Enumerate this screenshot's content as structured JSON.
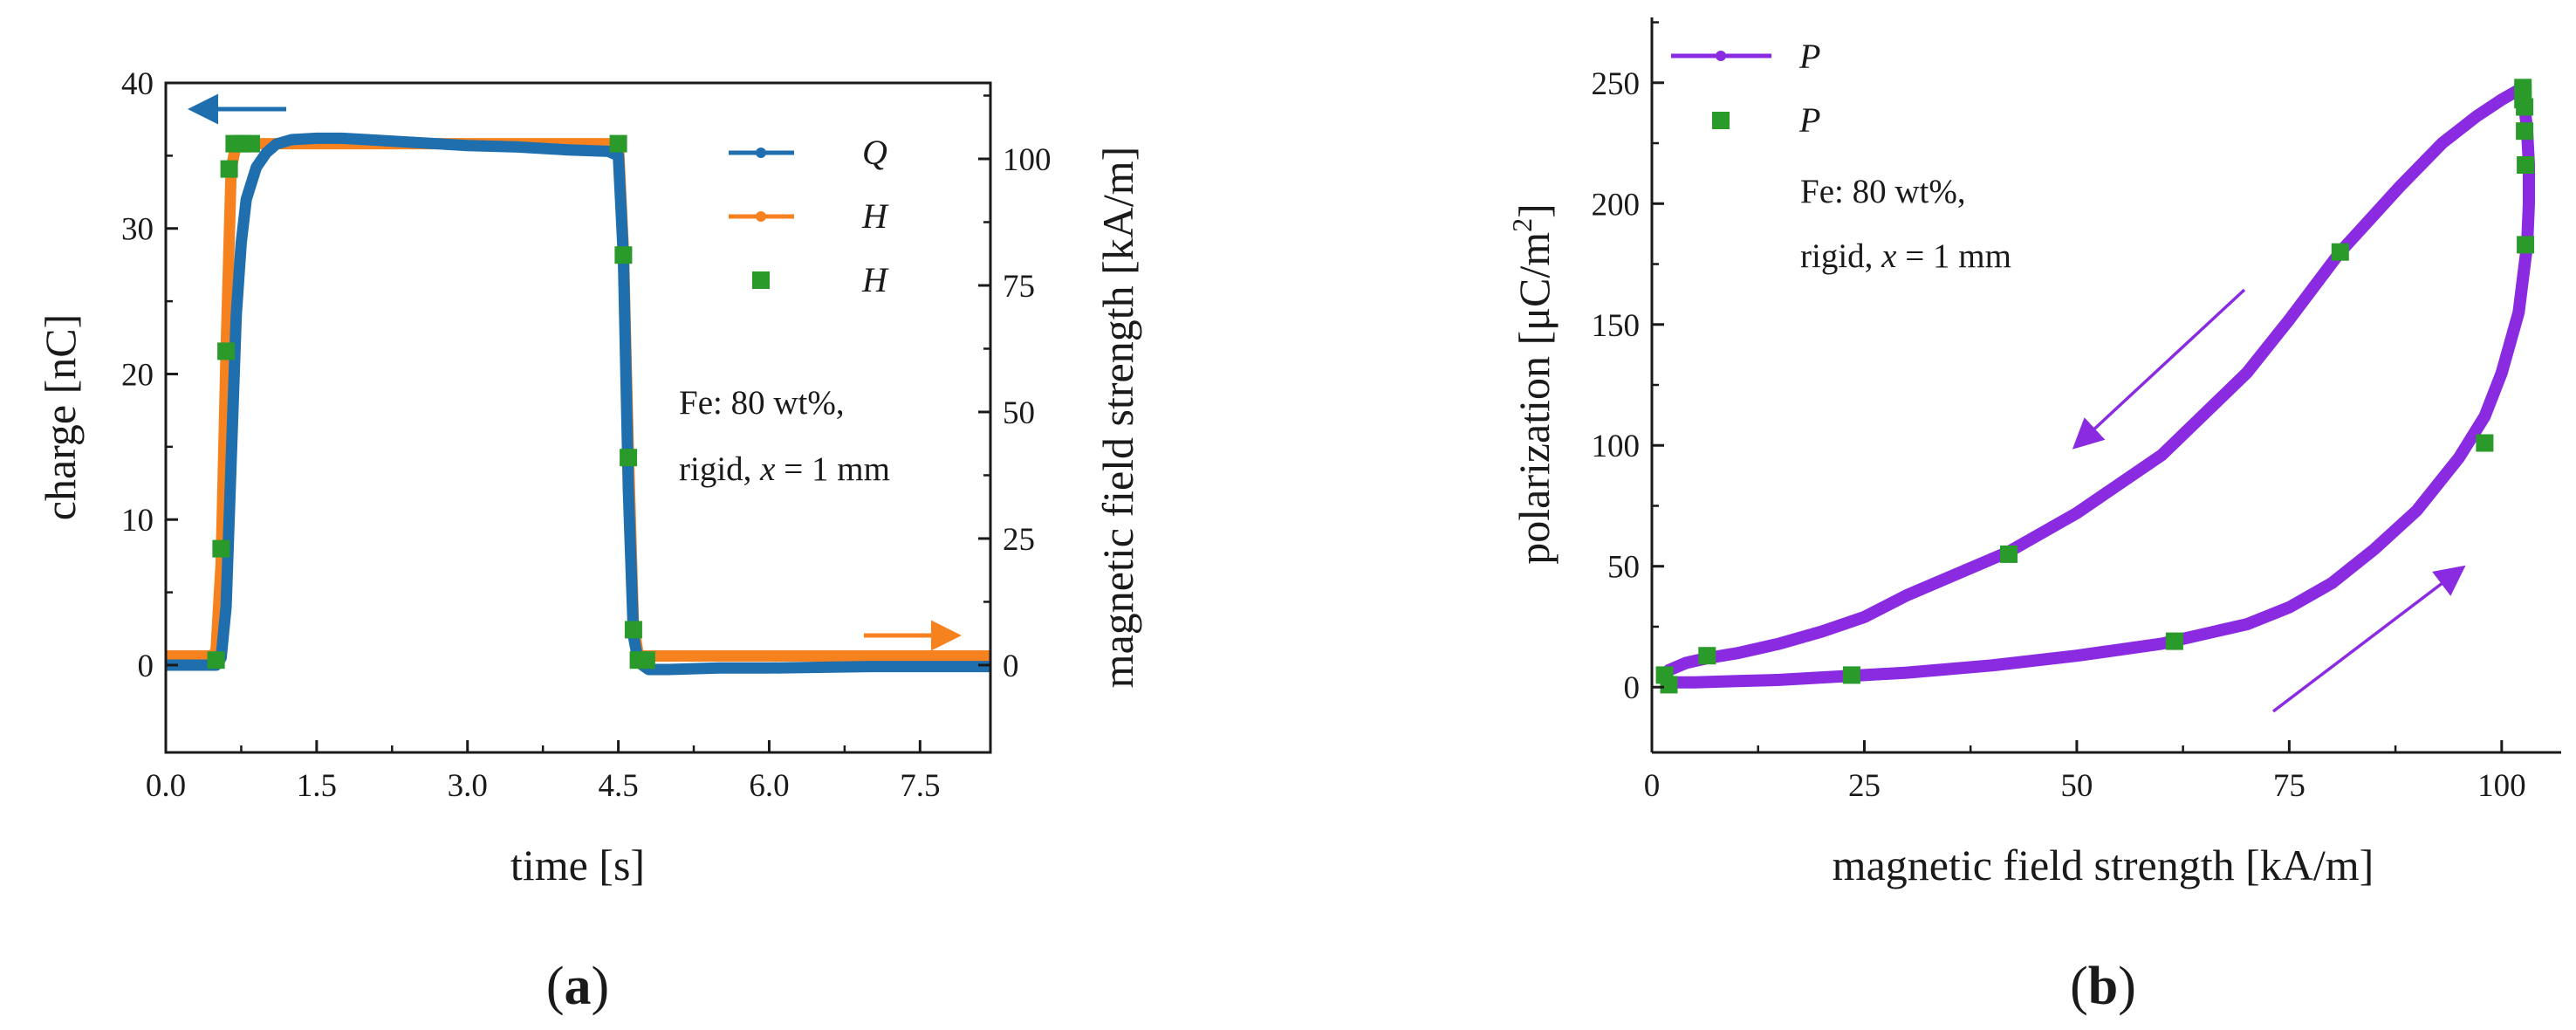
{
  "colors": {
    "Q": "#1f6faf",
    "H": "#f5821f",
    "H_marker": "#2a9a2a",
    "P": "#8a2be2",
    "P_marker": "#2a9a2a",
    "axis": "#1a1a1a"
  },
  "chart_data": [
    {
      "panel": "a",
      "type": "line",
      "panel_label": {
        "open": "(",
        "letter": "a",
        "close": ")"
      },
      "xlabel": "time [s]",
      "ylabel_left": "charge [nC]",
      "ylabel_right": "magnetic field strength [kA/m]",
      "xlim": [
        0,
        8.2
      ],
      "ylim_left": [
        -6,
        40
      ],
      "ylim_right": [
        -17.25,
        115
      ],
      "xticks": [
        0,
        1.5,
        3,
        4.5,
        6,
        7.5
      ],
      "xtick_labels": [
        "0.0",
        "1.5",
        "3.0",
        "4.5",
        "6.0",
        "7.5"
      ],
      "yticks_left": [
        0,
        10,
        20,
        30,
        40
      ],
      "ytick_labels_left": [
        "0",
        "10",
        "20",
        "30",
        "40"
      ],
      "yticks_right": [
        0,
        25,
        50,
        75,
        100
      ],
      "ytick_labels_right": [
        "0",
        "25",
        "50",
        "75",
        "100"
      ],
      "series": [
        {
          "name": "Q",
          "axis": "left",
          "style": "line",
          "x": [
            0,
            0.5,
            0.55,
            0.6,
            0.65,
            0.7,
            0.75,
            0.8,
            0.9,
            1.0,
            1.1,
            1.25,
            1.5,
            1.75,
            2.0,
            2.5,
            3.0,
            3.5,
            4.0,
            4.4,
            4.5,
            4.55,
            4.6,
            4.65,
            4.7,
            4.8,
            5.0,
            5.5,
            6.0,
            7.0,
            8.0,
            8.2
          ],
          "y": [
            0,
            0,
            0.5,
            4,
            14,
            24,
            29,
            32,
            34.2,
            35.2,
            35.8,
            36.1,
            36.2,
            36.2,
            36.1,
            35.9,
            35.7,
            35.6,
            35.4,
            35.3,
            35.0,
            28,
            12,
            2,
            0.2,
            -0.3,
            -0.3,
            -0.2,
            -0.2,
            -0.1,
            -0.1,
            -0.1
          ]
        },
        {
          "name": "H",
          "axis": "right",
          "style": "line",
          "x": [
            0,
            0.47,
            0.5,
            0.55,
            0.6,
            0.65,
            0.7,
            1.5,
            3.0,
            4.5,
            4.55,
            4.6,
            4.65,
            4.7,
            5.0,
            6.0,
            7.5,
            8.2
          ],
          "y": [
            1.8,
            1.8,
            3,
            20,
            62,
            98,
            103,
            103,
            103,
            103,
            82,
            42,
            8,
            1.8,
            1.8,
            1.8,
            1.8,
            1.8
          ]
        },
        {
          "name": "H",
          "axis": "right",
          "style": "markers",
          "x": [
            0.5,
            0.55,
            0.6,
            0.63,
            0.68,
            0.75,
            0.85,
            4.5,
            4.55,
            4.6,
            4.65,
            4.7,
            4.78
          ],
          "y": [
            1,
            23,
            62,
            98,
            103,
            103,
            103,
            103,
            81,
            41,
            7,
            1,
            1
          ]
        }
      ],
      "legend": [
        {
          "label": "Q",
          "kind": "line"
        },
        {
          "label": "H",
          "kind": "line"
        },
        {
          "label": "H",
          "kind": "marker"
        }
      ],
      "annotation_lines": [
        {
          "id": "fe",
          "text": "Fe: 80 wt%,"
        },
        {
          "id": "rigid",
          "prefix": "rigid, ",
          "italic": "x",
          "suffix": " = 1 mm"
        }
      ],
      "arrows": [
        "left arrow points to charge axis",
        "right arrow points to magnetic field strength axis"
      ]
    },
    {
      "panel": "b",
      "type": "line",
      "panel_label": {
        "open": "(",
        "letter": "b",
        "close": ")"
      },
      "xlabel": "magnetic field strength [kA/m]",
      "ylabel": {
        "prefix": "polarization [μC/m",
        "sup": "2",
        "suffix": "]"
      },
      "xlim": [
        0,
        107
      ],
      "ylim": [
        -27,
        277
      ],
      "xticks": [
        0,
        25,
        50,
        75,
        100
      ],
      "xtick_labels": [
        "0",
        "25",
        "50",
        "75",
        "100"
      ],
      "yticks": [
        0,
        50,
        100,
        150,
        200,
        250
      ],
      "ytick_labels": [
        "0",
        "50",
        "100",
        "150",
        "200",
        "250"
      ],
      "series": [
        {
          "name": "P",
          "style": "line",
          "x": [
            2,
            5,
            10,
            15,
            20,
            25,
            30,
            40,
            50,
            60,
            70,
            75,
            80,
            85,
            90,
            95,
            98,
            100,
            102,
            103,
            103.2,
            103.2,
            103,
            102.7,
            102.6,
            102.5,
            102.5,
            100,
            97,
            93,
            88,
            81,
            75,
            70,
            60,
            50,
            42,
            30,
            25,
            20,
            15,
            10,
            6.5,
            4,
            2,
            1.5,
            2
          ],
          "y": [
            2,
            2,
            2.5,
            3,
            4,
            5,
            6,
            9,
            13,
            18,
            26,
            33,
            43,
            57,
            73,
            95,
            112,
            130,
            155,
            183,
            200,
            216,
            230,
            240,
            245,
            247,
            248,
            243,
            236,
            225,
            207,
            180,
            152,
            130,
            96,
            72,
            56,
            38,
            29,
            23,
            18,
            14,
            12,
            10,
            7,
            4,
            2
          ]
        },
        {
          "name": "P",
          "style": "markers",
          "x": [
            1.5,
            2,
            6.5,
            23.5,
            42,
            61.5,
            81,
            98,
            102.5,
            102.5,
            102.7,
            102.7,
            102.8,
            102.8,
            102.5
          ],
          "y": [
            5,
            1,
            13,
            5,
            55,
            19,
            180,
            101,
            248,
            243,
            240,
            230,
            216,
            183,
            246
          ]
        }
      ],
      "legend": [
        {
          "label": "P",
          "kind": "line"
        },
        {
          "label": "P",
          "kind": "marker"
        }
      ],
      "annotation_lines": [
        {
          "id": "fe",
          "text": "Fe: 80 wt%,"
        },
        {
          "id": "rigid",
          "prefix": "rigid, ",
          "italic": "x",
          "suffix": " = 1 mm"
        }
      ],
      "arrows": [
        "upper arrow points down-left along return branch",
        "lower arrow points up-right along rising branch"
      ]
    }
  ]
}
